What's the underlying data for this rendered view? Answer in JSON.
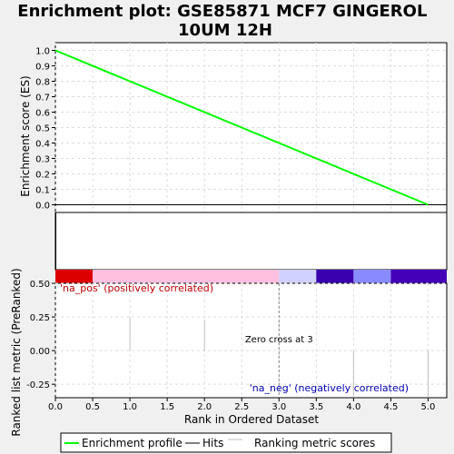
{
  "chart_data": {
    "type": "line",
    "title": "Enrichment plot: GSE85871 MCF7 GINGEROL 10UM 12H",
    "xlabel": "Rank in Ordered Dataset",
    "xlim": [
      0,
      5.25
    ],
    "x_ticks": [
      "0.0",
      "0.5",
      "1.0",
      "1.5",
      "2.0",
      "2.5",
      "3.0",
      "3.5",
      "4.0",
      "4.5",
      "5.0"
    ],
    "grid": true,
    "legend_position": "bottom",
    "es_panel": {
      "ylabel": "Enrichment score (ES)",
      "ylim": [
        -0.05,
        1.05
      ],
      "y_ticks": [
        "0.0",
        "0.1",
        "0.2",
        "0.3",
        "0.4",
        "0.5",
        "0.6",
        "0.7",
        "0.8",
        "0.9",
        "1.0"
      ],
      "series": [
        {
          "name": "Enrichment profile",
          "color": "#00ff00",
          "x": [
            0,
            5
          ],
          "y": [
            1.0,
            0.0
          ]
        }
      ]
    },
    "hits_panel": {
      "hit_positions": [
        0
      ]
    },
    "color_bar": [
      {
        "from": 0.0,
        "to": 0.5,
        "color": "#dd0000"
      },
      {
        "from": 0.5,
        "to": 3.0,
        "color": "#ffc0e0"
      },
      {
        "from": 3.0,
        "to": 3.5,
        "color": "#d0d0ff"
      },
      {
        "from": 3.5,
        "to": 4.0,
        "color": "#3a00b0"
      },
      {
        "from": 4.0,
        "to": 4.5,
        "color": "#8a8aff"
      },
      {
        "from": 4.5,
        "to": 5.25,
        "color": "#4400b8"
      }
    ],
    "metric_panel": {
      "ylabel": "Ranked list metric (PreRanked)",
      "ylim": [
        -0.35,
        0.5
      ],
      "y_ticks": [
        "0.50",
        "0.25",
        "0.00",
        "-0.25"
      ],
      "bars": [
        {
          "x": 1,
          "value": 0.25
        },
        {
          "x": 2,
          "value": 0.23
        },
        {
          "x": 4,
          "value": -0.36
        },
        {
          "x": 5,
          "value": -0.36
        }
      ],
      "zero_cross_x": 3,
      "zero_cross_label": "Zero cross at 3",
      "positive_label": "'na_pos' (positively correlated)",
      "negative_label": "'na_neg' (negatively correlated)",
      "positive_color": "#c00000",
      "negative_color": "#0000b0"
    },
    "legend": [
      {
        "name": "Enrichment profile",
        "color": "#00ff00"
      },
      {
        "name": "Hits",
        "color": "#000000"
      },
      {
        "name": "Ranking metric scores",
        "color": "#c0c0c0"
      }
    ]
  }
}
